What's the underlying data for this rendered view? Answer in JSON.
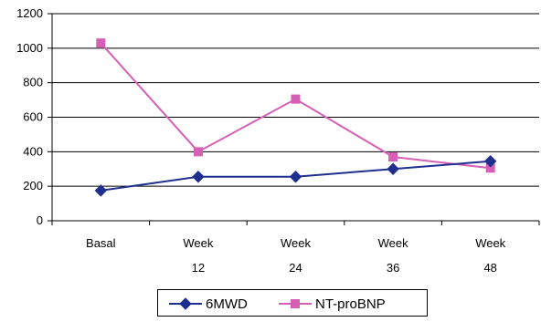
{
  "chart_data": {
    "type": "line",
    "title": "",
    "xlabel": "",
    "ylabel": "",
    "categories": [
      {
        "line1": "Basal",
        "line2": ""
      },
      {
        "line1": "Week",
        "line2": "12"
      },
      {
        "line1": "Week",
        "line2": "24"
      },
      {
        "line1": "Week",
        "line2": "36"
      },
      {
        "line1": "Week",
        "line2": "48"
      }
    ],
    "ylim": [
      0,
      1200
    ],
    "yticks": [
      "0",
      "200",
      "400",
      "600",
      "800",
      "1000",
      "1200"
    ],
    "grid": "horizontal",
    "legend_position": "bottom",
    "series": [
      {
        "name": "6MWD",
        "color": "#1f2f8f",
        "marker": "diamond",
        "values": [
          175,
          255,
          255,
          300,
          345
        ]
      },
      {
        "name": "NT-proBNP",
        "color": "#d660b5",
        "marker": "square",
        "values": [
          1030,
          400,
          705,
          370,
          305
        ]
      }
    ]
  }
}
